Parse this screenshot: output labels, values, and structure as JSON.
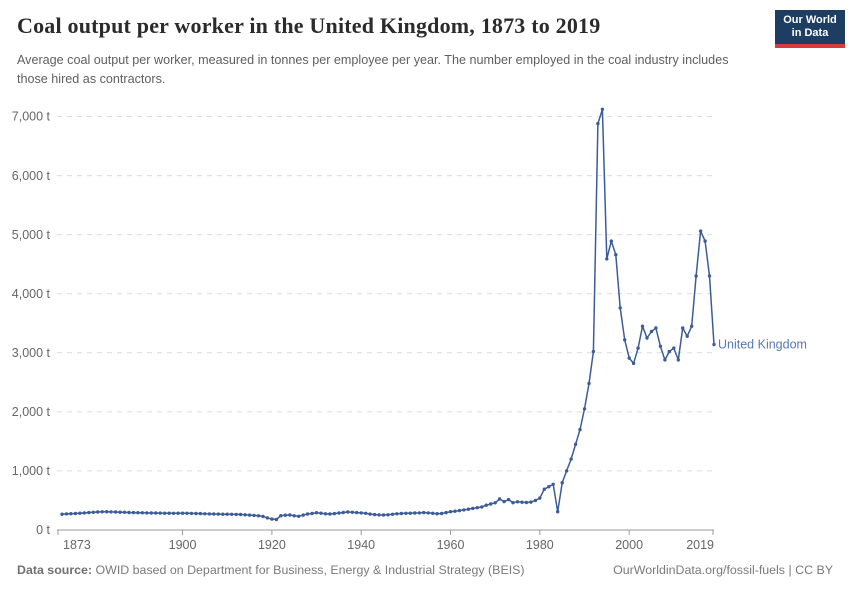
{
  "header": {
    "logo": {
      "line1": "Our World",
      "line2": "in Data",
      "bg_color": "#1d3d63",
      "accent_color": "#d73c3c"
    }
  },
  "footer": {
    "source_label": "Data source:",
    "source_text": " OWID based on Department for Business, Energy & Industrial Strategy (BEIS)",
    "link_text": "OurWorldinData.org/fossil-fuels",
    "divider": " | ",
    "license_text": "CC BY"
  },
  "chart_data": {
    "type": "line",
    "title": "Coal output per worker in the United Kingdom, 1873 to 2019",
    "subtitle": "Average coal output per worker, measured in tonnes per employee per year. The number employed in the coal industry includes those hired as contractors.",
    "xlabel": "",
    "ylabel": "",
    "xlim": [
      1873,
      2019
    ],
    "ylim": [
      0,
      7000
    ],
    "x_ticks": [
      1873,
      1900,
      1920,
      1940,
      1960,
      1980,
      2000,
      2019
    ],
    "y_ticks": [
      0,
      1000,
      2000,
      3000,
      4000,
      5000,
      6000,
      7000
    ],
    "y_tick_labels": [
      "0 t",
      "1,000 t",
      "2,000 t",
      "3,000 t",
      "4,000 t",
      "5,000 t",
      "6,000 t",
      "7,000 t"
    ],
    "grid": "dashed-horizontal",
    "grid_color": "#dcdcdc",
    "axis_color": "#999999",
    "tick_label_color": "#666666",
    "legend_position": "end-of-line-label",
    "end_label": "United Kingdom",
    "end_label_color": "#5878b4",
    "series": [
      {
        "name": "United Kingdom",
        "color": "#3d5c97",
        "x": [
          1873,
          1874,
          1875,
          1876,
          1877,
          1878,
          1879,
          1880,
          1881,
          1882,
          1883,
          1884,
          1885,
          1886,
          1887,
          1888,
          1889,
          1890,
          1891,
          1892,
          1893,
          1894,
          1895,
          1896,
          1897,
          1898,
          1899,
          1900,
          1901,
          1902,
          1903,
          1904,
          1905,
          1906,
          1907,
          1908,
          1909,
          1910,
          1911,
          1912,
          1913,
          1914,
          1915,
          1916,
          1917,
          1918,
          1919,
          1920,
          1921,
          1922,
          1923,
          1924,
          1925,
          1926,
          1927,
          1928,
          1929,
          1930,
          1931,
          1932,
          1933,
          1934,
          1935,
          1936,
          1937,
          1938,
          1939,
          1940,
          1941,
          1942,
          1943,
          1944,
          1945,
          1946,
          1947,
          1948,
          1949,
          1950,
          1951,
          1952,
          1953,
          1954,
          1955,
          1956,
          1957,
          1958,
          1959,
          1960,
          1961,
          1962,
          1963,
          1964,
          1965,
          1966,
          1967,
          1968,
          1969,
          1970,
          1971,
          1972,
          1973,
          1974,
          1975,
          1976,
          1977,
          1978,
          1979,
          1980,
          1981,
          1982,
          1983,
          1984,
          1985,
          1986,
          1987,
          1988,
          1989,
          1990,
          1991,
          1992,
          1993,
          1994,
          1995,
          1996,
          1997,
          1998,
          1999,
          2000,
          2001,
          2002,
          2003,
          2004,
          2005,
          2006,
          2007,
          2008,
          2009,
          2010,
          2011,
          2012,
          2013,
          2014,
          2015,
          2016,
          2017,
          2018,
          2019
        ],
        "values": [
          268,
          272,
          276,
          280,
          285,
          290,
          295,
          300,
          304,
          308,
          310,
          307,
          304,
          301,
          299,
          297,
          295,
          293,
          291,
          289,
          288,
          287,
          286,
          285,
          284,
          283,
          284,
          285,
          283,
          281,
          279,
          277,
          275,
          273,
          271,
          269,
          268,
          267,
          266,
          264,
          262,
          258,
          253,
          248,
          240,
          230,
          205,
          185,
          178,
          242,
          250,
          254,
          240,
          232,
          252,
          271,
          280,
          293,
          285,
          275,
          271,
          278,
          288,
          297,
          305,
          300,
          295,
          290,
          283,
          270,
          260,
          256,
          254,
          258,
          265,
          275,
          280,
          283,
          285,
          287,
          290,
          295,
          290,
          283,
          276,
          280,
          295,
          310,
          318,
          328,
          340,
          352,
          365,
          377,
          390,
          420,
          440,
          460,
          525,
          480,
          515,
          462,
          478,
          470,
          465,
          472,
          500,
          540,
          690,
          733,
          773,
          310,
          800,
          1000,
          1200,
          1450,
          1700,
          2050,
          2480,
          3020,
          6880,
          7122,
          4590,
          4890,
          4660,
          3760,
          3220,
          2910,
          2820,
          3080,
          3450,
          3250,
          3360,
          3420,
          3110,
          2880,
          3020,
          3080,
          2880,
          3420,
          3280,
          3450,
          4300,
          5060,
          4890,
          4300,
          3140
        ]
      }
    ]
  }
}
